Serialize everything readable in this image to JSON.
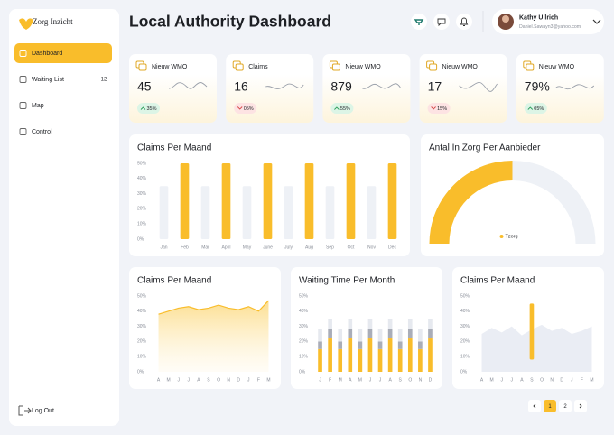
{
  "sidebar": {
    "brand": "Zorg Inzicht",
    "menu": [
      {
        "label": "Dashboard",
        "active": true
      },
      {
        "label": "Waiting List",
        "badge": 12
      },
      {
        "label": "Map"
      },
      {
        "label": "Control"
      }
    ],
    "logout": "Log Out"
  },
  "header": {
    "title": "Local Authority Dashboard",
    "user": {
      "name": "Kathy Ullrich",
      "email": "Daniel.Sawayn3@yahoo.com"
    }
  },
  "kpis": [
    {
      "label": "Nieuw WMO",
      "value": 45,
      "change": "35%",
      "trend": "up"
    },
    {
      "label": "Claims",
      "value": 16,
      "change": "05%",
      "trend": "down"
    },
    {
      "label": "Nieuw WMO",
      "value": 879,
      "change": "55%",
      "trend": "up"
    },
    {
      "label": "Nieuw WMO",
      "value": 17,
      "change": "15%",
      "trend": "down"
    },
    {
      "label": "Nieuw WMO",
      "value": "79%",
      "change": "05%",
      "trend": "up"
    }
  ],
  "chart_data": [
    {
      "type": "bar",
      "title": "Claims Per Maand",
      "categories": [
        "Jan",
        "Feb",
        "Mar",
        "April",
        "May",
        "June",
        "July",
        "Aug",
        "Sep",
        "Oct",
        "Nov",
        "Dec"
      ],
      "values": [
        35,
        50,
        35,
        50,
        35,
        50,
        35,
        50,
        35,
        50,
        35,
        50
      ],
      "colors": [
        "#eef1f6",
        "#f9bd2b",
        "#eef1f6",
        "#f9bd2b",
        "#eef1f6",
        "#f9bd2b",
        "#eef1f6",
        "#f9bd2b",
        "#eef1f6",
        "#f9bd2b",
        "#eef1f6",
        "#f9bd2b"
      ],
      "ylim": [
        0,
        50
      ],
      "yticks": [
        {
          "value": 0,
          "label": "0%"
        },
        {
          "value": 10,
          "label": "10%"
        },
        {
          "value": 20,
          "label": "20%"
        },
        {
          "value": 30,
          "label": "30%"
        },
        {
          "value": 40,
          "label": "40%"
        },
        {
          "value": 50,
          "label": "50%"
        }
      ]
    },
    {
      "type": "pie",
      "title": "Antal In Zorg Per Aanbieder",
      "categories": [
        "Tzorg",
        null
      ],
      "values": [
        50,
        50
      ],
      "colors": [
        "#f9bd2b",
        "#eef1f6"
      ]
    },
    {
      "type": "area",
      "title": "Claims Per Maand",
      "categories": [
        "A",
        "M",
        "J",
        "J",
        "A",
        "S",
        "O",
        "N",
        "D",
        "J",
        "F",
        "M"
      ],
      "values": [
        38,
        40,
        42,
        43,
        41,
        42,
        44,
        42,
        41,
        43,
        40,
        47
      ],
      "color": "#f9bd2b",
      "ylim": [
        0,
        50
      ],
      "yticks": [
        {
          "value": 0,
          "label": "0%"
        },
        {
          "value": 10,
          "label": "10%"
        },
        {
          "value": 20,
          "label": "20%"
        },
        {
          "value": 30,
          "label": "30%"
        },
        {
          "value": 40,
          "label": "40%"
        },
        {
          "value": 50,
          "label": "50%"
        }
      ]
    },
    {
      "type": "stacked_bar",
      "title": "Waiting Time Per Month",
      "categories": [
        "J",
        "F",
        "M",
        "A",
        "M",
        "J",
        "J",
        "A",
        "S",
        "O",
        "N",
        "D"
      ],
      "series": [
        {
          "color": "#f9bd2b",
          "values": [
            15,
            22,
            15,
            22,
            15,
            22,
            15,
            22,
            15,
            22,
            15,
            22
          ]
        },
        {
          "color": "#a9adb8",
          "values": [
            5,
            6,
            5,
            6,
            5,
            6,
            5,
            6,
            5,
            6,
            5,
            6
          ]
        },
        {
          "color": "#e6e9ef",
          "values": [
            8,
            7,
            8,
            7,
            8,
            7,
            8,
            7,
            8,
            7,
            8,
            7
          ]
        }
      ],
      "ylim": [
        0,
        50
      ],
      "yticks": [
        {
          "value": 0,
          "label": "0%"
        },
        {
          "value": 10,
          "label": "10%"
        },
        {
          "value": 20,
          "label": "20%"
        },
        {
          "value": 30,
          "label": "30%"
        },
        {
          "value": 40,
          "label": "40%"
        },
        {
          "value": 50,
          "label": "50%"
        }
      ]
    },
    {
      "type": "combo",
      "title": "Claims Per Maand",
      "categories": [
        "A",
        "M",
        "J",
        "J",
        "A",
        "S",
        "O",
        "N",
        "D",
        "J",
        "F",
        "M"
      ],
      "values": [
        25,
        29,
        26,
        30,
        24,
        28,
        31,
        27,
        29,
        25,
        27,
        30
      ],
      "color": "#eaedf4",
      "bar_low": [
        null,
        null,
        null,
        null,
        null,
        8,
        null,
        null,
        null,
        null,
        null,
        null
      ],
      "bar_high": [
        null,
        null,
        null,
        null,
        null,
        45,
        null,
        null,
        null,
        null,
        null,
        null
      ],
      "bar_color": "#f9bd2b",
      "ylim": [
        0,
        50
      ],
      "yticks": [
        {
          "value": 0,
          "label": "0%"
        },
        {
          "value": 10,
          "label": "10%"
        },
        {
          "value": 20,
          "label": "20%"
        },
        {
          "value": 30,
          "label": "30%"
        },
        {
          "value": 40,
          "label": "40%"
        },
        {
          "value": 50,
          "label": "50%"
        }
      ]
    }
  ],
  "pagination": {
    "pages": [
      "1",
      "2"
    ],
    "current": 0
  }
}
